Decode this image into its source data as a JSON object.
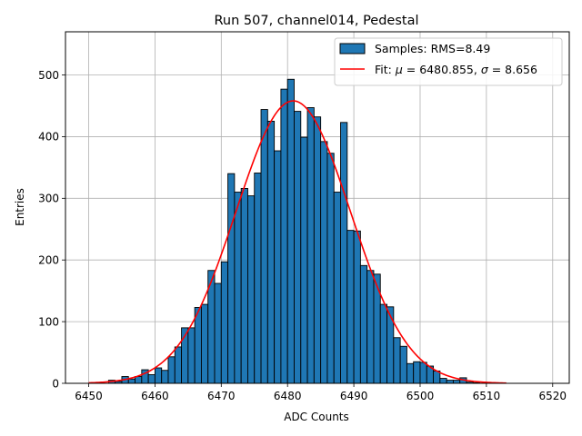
{
  "chart_data": {
    "type": "bar",
    "title": "Run 507, channel014, Pedestal",
    "xlabel": "ADC Counts",
    "ylabel": "Entries",
    "xlim": [
      6446.5,
      6522.5
    ],
    "ylim": [
      0,
      570
    ],
    "xticks": [
      6450,
      6460,
      6470,
      6480,
      6490,
      6500,
      6510,
      6520
    ],
    "yticks": [
      0,
      100,
      200,
      300,
      400,
      500
    ],
    "grid": true,
    "legend_position": "top-right",
    "histogram": {
      "name": "Samples: RMS=8.49",
      "color": "#1f77b4",
      "edge_color": "#000000",
      "bin_width": 1,
      "bin_left_edges": [
        6453,
        6454,
        6455,
        6456,
        6457,
        6458,
        6459,
        6460,
        6461,
        6462,
        6463,
        6464,
        6465,
        6466,
        6467,
        6468,
        6469,
        6470,
        6471,
        6472,
        6473,
        6474,
        6475,
        6476,
        6477,
        6478,
        6479,
        6480,
        6481,
        6482,
        6483,
        6484,
        6485,
        6486,
        6487,
        6488,
        6489,
        6490,
        6491,
        6492,
        6493,
        6494,
        6495,
        6496,
        6497,
        6498,
        6499,
        6500,
        6501,
        6502,
        6503,
        6504,
        6505,
        6506,
        6507,
        6508
      ],
      "counts": [
        5,
        3,
        11,
        7,
        11,
        22,
        14,
        25,
        21,
        43,
        59,
        90,
        90,
        123,
        128,
        183,
        162,
        197,
        340,
        310,
        316,
        304,
        341,
        444,
        425,
        377,
        477,
        493,
        441,
        399,
        447,
        432,
        392,
        373,
        310,
        423,
        248,
        247,
        191,
        183,
        177,
        128,
        124,
        74,
        60,
        32,
        35,
        34,
        28,
        20,
        8,
        5,
        5,
        9,
        2,
        1
      ]
    },
    "fit": {
      "name": "Fit: μ = 6480.855, σ = 8.656",
      "label_prefix": "Fit: ",
      "mu_symbol": "μ",
      "mu_text": " = 6480.855, ",
      "sigma_symbol": "σ",
      "sigma_text": " = 8.656",
      "color": "#ff0000",
      "mu": 6480.855,
      "sigma": 8.656,
      "amplitude": 458,
      "x_range": [
        6450,
        6513
      ]
    },
    "tick_labels_x": [
      "6450",
      "6460",
      "6470",
      "6480",
      "6490",
      "6500",
      "6510",
      "6520"
    ],
    "tick_labels_y": [
      "0",
      "100",
      "200",
      "300",
      "400",
      "500"
    ]
  }
}
